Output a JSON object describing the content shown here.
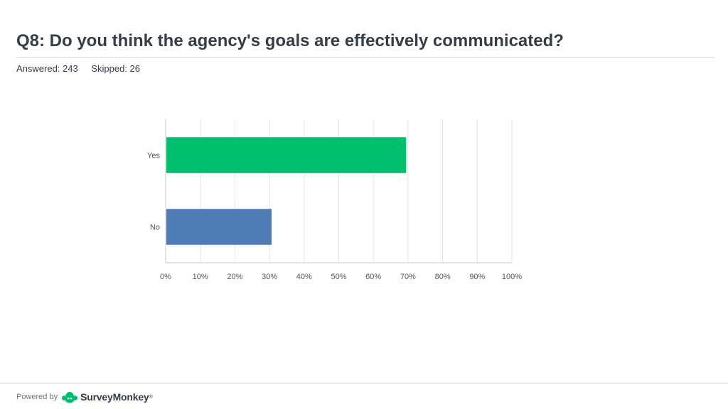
{
  "header": {
    "title": "Q8: Do you think the agency's goals are effectively communicated?",
    "answered": "Answered: 243",
    "skipped": "Skipped: 26"
  },
  "chart_data": {
    "type": "bar",
    "orientation": "horizontal",
    "categories": [
      "Yes",
      "No"
    ],
    "values": [
      69.4,
      30.6
    ],
    "value_unit": "%",
    "xlim": [
      0,
      100
    ],
    "x_ticks": [
      "0%",
      "10%",
      "20%",
      "30%",
      "40%",
      "50%",
      "60%",
      "70%",
      "80%",
      "90%",
      "100%"
    ],
    "bar_colors": [
      "#00bf6f",
      "#507cb6"
    ],
    "grid": true,
    "legend": "none"
  },
  "footer": {
    "powered_by": "Powered by",
    "brand": "SurveyMonkey",
    "brand_mark": "®",
    "logo_icon": "surveymonkey-logo-icon",
    "logo_color": "#00bf6f"
  }
}
